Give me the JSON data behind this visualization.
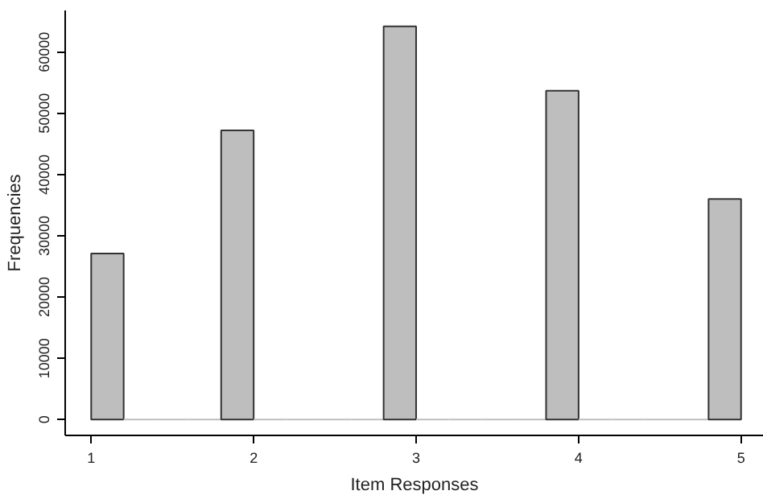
{
  "chart_data": {
    "type": "histogram",
    "xlabel": "Item Responses",
    "ylabel": "Frequencies",
    "bins": [
      1.0,
      1.2,
      1.4,
      1.6,
      1.8,
      2.0,
      2.2,
      2.4,
      2.6,
      2.8,
      3.0,
      3.2,
      3.4,
      3.6,
      3.8,
      4.0,
      4.2,
      4.4,
      4.6,
      4.8,
      5.0
    ],
    "values": [
      27100,
      0,
      0,
      0,
      47200,
      0,
      0,
      0,
      0,
      64200,
      0,
      0,
      0,
      0,
      53700,
      0,
      0,
      0,
      0,
      36000
    ],
    "color": "#bebebe",
    "xlim": [
      0.84,
      5.14
    ],
    "ylim": [
      -2600,
      66800
    ],
    "xticks": [
      1,
      2,
      3,
      4,
      5
    ],
    "yticks": [
      0,
      10000,
      20000,
      30000,
      40000,
      50000,
      60000
    ]
  }
}
